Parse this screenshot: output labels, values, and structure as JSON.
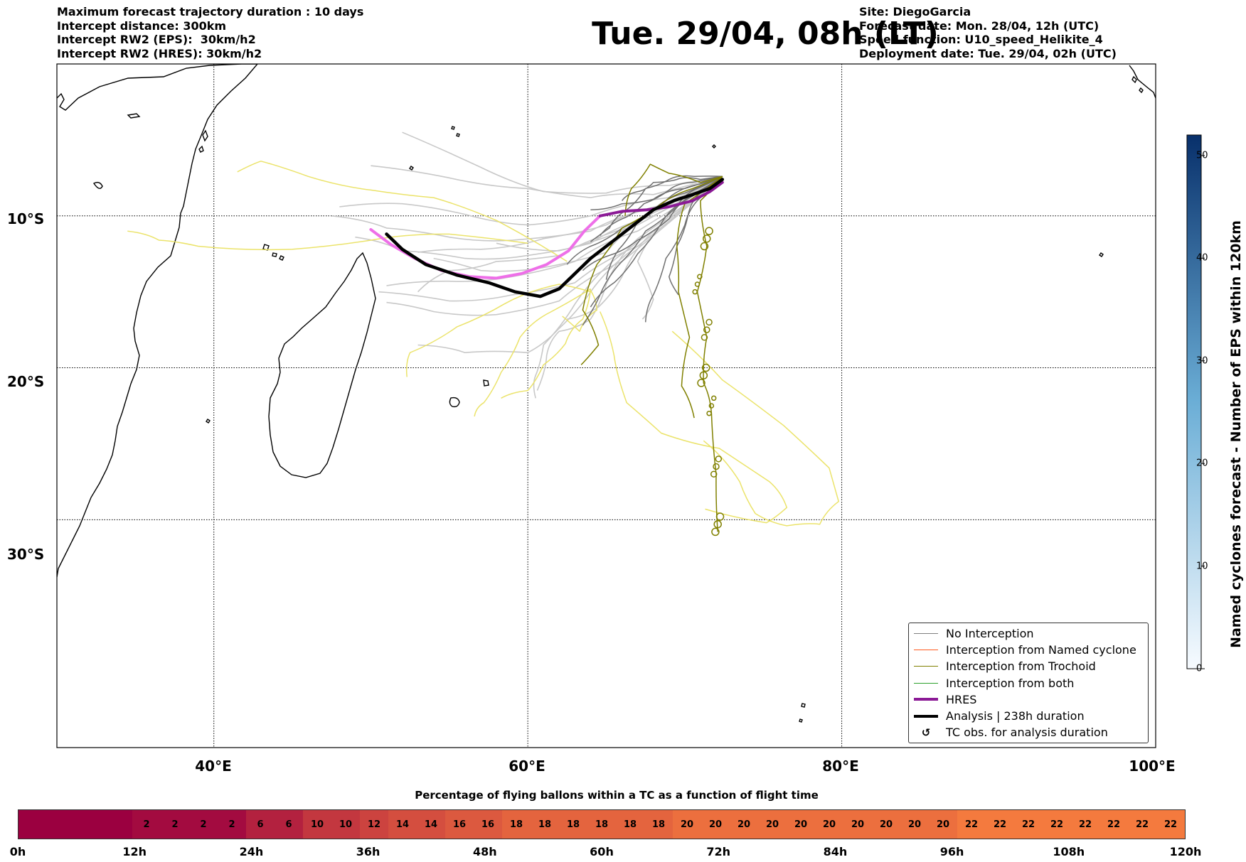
{
  "header_left": [
    "Maximum forecast trajectory duration : 10 days",
    "Intercept distance: 300km",
    "Intercept RW2 (EPS):  30km/h2",
    "Intercept RW2 (HRES): 30km/h2"
  ],
  "header_right": [
    "Site: DiegoGarcia",
    "Forecast date: Mon. 28/04, 12h (UTC)",
    "Speed function: U10_speed_Helikite_4",
    "Deployment date: Tue. 29/04, 02h (UTC)"
  ],
  "title": "Tue. 29/04, 08h (LT)",
  "map": {
    "lon_range": [
      30,
      100
    ],
    "lat_range": [
      -45,
      0
    ],
    "lon_labels": [
      "40°E",
      "60°E",
      "80°E",
      "100°E"
    ],
    "lat_labels": [
      "10°S",
      "20°S",
      "30°S"
    ],
    "lon_grid": [
      40,
      60,
      80
    ],
    "lat_grid": [
      -10,
      -20,
      -30
    ],
    "site": {
      "lon": 72.4,
      "lat": -7.3
    }
  },
  "legend": {
    "items": [
      {
        "label": "No Interception",
        "color": "#808080",
        "kind": "line",
        "width": 1.5
      },
      {
        "label": "Interception from Named cyclone",
        "color": "#ff5a1e",
        "kind": "line",
        "width": 1.5
      },
      {
        "label": "Interception from Trochoid",
        "color": "#808000",
        "kind": "line",
        "width": 1.5
      },
      {
        "label": "Interception from both",
        "color": "#2ca02c",
        "kind": "line",
        "width": 1.5
      },
      {
        "label": "HRES",
        "color": "#8b1a96",
        "kind": "line",
        "width": 4
      },
      {
        "label": "Analysis | 238h duration",
        "color": "#000000",
        "kind": "line",
        "width": 4
      },
      {
        "label": "TC obs. for analysis duration",
        "color": "#000000",
        "kind": "symbol",
        "symbol": "↺"
      }
    ]
  },
  "colorbar": {
    "title": "Named cyclones forecast - Number of EPS within 120km",
    "ticks": [
      "0",
      "10",
      "20",
      "30",
      "40",
      "50"
    ],
    "min": 0,
    "max": 52,
    "color_low": "#f7fbff",
    "color_high": "#08306b"
  },
  "percent_bar": {
    "title": "Percentage of flying ballons within a TC as a function of flight time",
    "values": [
      "",
      "",
      "",
      "",
      "2",
      "2",
      "2",
      "2",
      "6",
      "6",
      "10",
      "10",
      "12",
      "14",
      "14",
      "16",
      "16",
      "18",
      "18",
      "18",
      "18",
      "18",
      "18",
      "20",
      "20",
      "20",
      "20",
      "20",
      "20",
      "20",
      "20",
      "20",
      "20",
      "22",
      "22",
      "22",
      "22",
      "22",
      "22",
      "22",
      "22"
    ],
    "time_labels": [
      "0h",
      "12h",
      "24h",
      "36h",
      "48h",
      "60h",
      "72h",
      "84h",
      "96h",
      "108h",
      "120h"
    ],
    "color_low": "#9b0040",
    "color_high": "#f47a3e"
  },
  "tracks": {
    "analysis": [
      [
        51.0,
        -11.2
      ],
      [
        52.0,
        -12.2
      ],
      [
        53.5,
        -13.2
      ],
      [
        55.5,
        -13.9
      ],
      [
        57.5,
        -14.4
      ],
      [
        59.2,
        -15.0
      ],
      [
        60.8,
        -15.3
      ],
      [
        62.0,
        -14.8
      ],
      [
        63.0,
        -13.8
      ],
      [
        64.0,
        -12.8
      ],
      [
        65.5,
        -11.6
      ],
      [
        67.0,
        -10.4
      ],
      [
        68.0,
        -9.6
      ],
      [
        69.3,
        -9.0
      ],
      [
        70.5,
        -8.6
      ],
      [
        71.6,
        -8.2
      ],
      [
        72.4,
        -7.6
      ]
    ],
    "hres": [
      [
        50.0,
        -10.9
      ],
      [
        51.3,
        -11.9
      ],
      [
        52.8,
        -12.8
      ],
      [
        54.5,
        -13.6
      ],
      [
        56.3,
        -14.0
      ],
      [
        58.0,
        -14.1
      ],
      [
        59.6,
        -13.8
      ],
      [
        61.2,
        -13.2
      ],
      [
        62.6,
        -12.3
      ],
      [
        63.6,
        -11.0
      ],
      [
        64.6,
        -10.0
      ],
      [
        66.0,
        -9.7
      ],
      [
        67.6,
        -9.6
      ],
      [
        69.0,
        -9.4
      ],
      [
        70.5,
        -9.0
      ],
      [
        71.6,
        -8.4
      ],
      [
        72.4,
        -7.8
      ]
    ],
    "eps_light": [
      [
        [
          72.4,
          -7.4
        ],
        [
          69,
          -8
        ],
        [
          65,
          -8.5
        ],
        [
          61,
          -8.4
        ],
        [
          57,
          -6.8
        ],
        [
          52,
          -4.5
        ]
      ],
      [
        [
          72.4,
          -7.4
        ],
        [
          68,
          -8.6
        ],
        [
          64,
          -8.8
        ],
        [
          60,
          -8.2
        ],
        [
          55,
          -7.5
        ],
        [
          50,
          -6.7
        ]
      ],
      [
        [
          72.4,
          -7.4
        ],
        [
          69,
          -8.8
        ],
        [
          64,
          -10
        ],
        [
          60,
          -10.6
        ],
        [
          56,
          -9.9
        ],
        [
          52,
          -9.2
        ],
        [
          48,
          -9.4
        ]
      ],
      [
        [
          72.4,
          -7.4
        ],
        [
          68,
          -9.5
        ],
        [
          64,
          -11
        ],
        [
          59,
          -11.6
        ],
        [
          55,
          -11.4
        ],
        [
          51,
          -10.8
        ],
        [
          47.5,
          -10
        ]
      ],
      [
        [
          72.4,
          -7.4
        ],
        [
          68,
          -10
        ],
        [
          64,
          -11.8
        ],
        [
          60,
          -12.6
        ],
        [
          56,
          -12.8
        ],
        [
          52,
          -12.3
        ],
        [
          49,
          -11.4
        ]
      ],
      [
        [
          72.4,
          -7.4
        ],
        [
          67,
          -11
        ],
        [
          63,
          -13
        ],
        [
          59,
          -14
        ],
        [
          55,
          -14.3
        ],
        [
          51,
          -14.6
        ]
      ],
      [
        [
          72.4,
          -7.4
        ],
        [
          67,
          -12
        ],
        [
          63,
          -14.4
        ],
        [
          59,
          -15.2
        ],
        [
          55,
          -15.6
        ],
        [
          50.5,
          -15
        ]
      ],
      [
        [
          72.4,
          -7.4
        ],
        [
          66,
          -13
        ],
        [
          62,
          -15.6
        ],
        [
          58,
          -16.5
        ],
        [
          54,
          -16.3
        ],
        [
          51,
          -15.7
        ]
      ],
      [
        [
          72.4,
          -7.4
        ],
        [
          67,
          -12
        ],
        [
          64,
          -15
        ],
        [
          62,
          -17.4
        ],
        [
          60,
          -19
        ],
        [
          56,
          -19
        ],
        [
          53,
          -18.5
        ]
      ],
      [
        [
          72.4,
          -7.4
        ],
        [
          66,
          -12.5
        ],
        [
          63,
          -15.8
        ],
        [
          61,
          -18.5
        ],
        [
          60.5,
          -20.5
        ],
        [
          60.5,
          -22
        ]
      ],
      [
        [
          72.4,
          -7.4
        ],
        [
          67,
          -11.5
        ],
        [
          65,
          -14.5
        ],
        [
          64,
          -16.8
        ],
        [
          62,
          -17.6
        ],
        [
          61.2,
          -19.2
        ],
        [
          60.6,
          -21.5
        ]
      ],
      [
        [
          72.4,
          -7.4
        ],
        [
          68,
          -11
        ],
        [
          66,
          -14
        ],
        [
          64.5,
          -16
        ],
        [
          62.5,
          -16.8
        ]
      ],
      [
        [
          72.4,
          -7.4
        ],
        [
          69,
          -10
        ],
        [
          67,
          -13
        ],
        [
          68,
          -15.5
        ],
        [
          67.3,
          -16.8
        ]
      ],
      [
        [
          72.4,
          -7.4
        ],
        [
          70,
          -9
        ],
        [
          66,
          -11
        ],
        [
          62,
          -12.3
        ],
        [
          58,
          -11.8
        ]
      ],
      [
        [
          72.4,
          -7.4
        ],
        [
          69,
          -9.2
        ],
        [
          65,
          -10.6
        ],
        [
          61,
          -11.5
        ],
        [
          57,
          -12.2
        ],
        [
          53,
          -12.4
        ]
      ],
      [
        [
          72.4,
          -7.4
        ],
        [
          68,
          -9.8
        ],
        [
          65,
          -12.4
        ],
        [
          61,
          -13.4
        ],
        [
          57,
          -13.6
        ],
        [
          54,
          -12.8
        ]
      ],
      [
        [
          72.4,
          -7.4
        ],
        [
          67,
          -10.6
        ],
        [
          62,
          -12.6
        ],
        [
          58,
          -13.0
        ],
        [
          55,
          -13.6
        ],
        [
          53,
          -15
        ]
      ]
    ],
    "eps_dark": [
      [
        [
          72.4,
          -7.4
        ],
        [
          70,
          -8.2
        ],
        [
          68,
          -8.9
        ],
        [
          66,
          -9.2
        ],
        [
          64,
          -9.6
        ]
      ],
      [
        [
          72.4,
          -7.4
        ],
        [
          70,
          -8.5
        ],
        [
          68,
          -9.6
        ],
        [
          66,
          -10.8
        ],
        [
          64,
          -12.0
        ],
        [
          62.5,
          -13.2
        ]
      ],
      [
        [
          72.4,
          -7.4
        ],
        [
          70,
          -9
        ],
        [
          68.5,
          -10.5
        ],
        [
          67,
          -12.5
        ],
        [
          65.5,
          -14.4
        ],
        [
          64,
          -16
        ]
      ],
      [
        [
          72.4,
          -7.4
        ],
        [
          71,
          -8.8
        ],
        [
          70,
          -10.6
        ],
        [
          68.8,
          -12.8
        ],
        [
          68,
          -15.2
        ],
        [
          67.5,
          -17
        ]
      ],
      [
        [
          72.4,
          -7.4
        ],
        [
          70.8,
          -8.2
        ],
        [
          69.5,
          -9.4
        ],
        [
          67.5,
          -11
        ],
        [
          66,
          -13
        ],
        [
          64.6,
          -15.2
        ],
        [
          63.5,
          -17.2
        ]
      ],
      [
        [
          72.4,
          -7.4
        ],
        [
          70.5,
          -7.8
        ],
        [
          69,
          -8.3
        ],
        [
          67.4,
          -9.2
        ],
        [
          66,
          -10.2
        ],
        [
          64.6,
          -11.3
        ]
      ],
      [
        [
          72.4,
          -7.4
        ],
        [
          71,
          -7.6
        ],
        [
          69.5,
          -7.6
        ],
        [
          68,
          -7.8
        ],
        [
          67,
          -8.4
        ],
        [
          66,
          -9
        ]
      ],
      [
        [
          72.4,
          -7.4
        ],
        [
          71,
          -8.5
        ],
        [
          70.2,
          -10
        ],
        [
          69.5,
          -12
        ],
        [
          69,
          -14
        ],
        [
          69.6,
          -15.2
        ]
      ],
      [
        [
          72.4,
          -7.4
        ],
        [
          70.5,
          -8.6
        ],
        [
          69,
          -10.2
        ],
        [
          67,
          -11.6
        ],
        [
          65.2,
          -12.6
        ],
        [
          63.5,
          -13.6
        ]
      ],
      [
        [
          72.4,
          -7.4
        ],
        [
          71,
          -7.9
        ],
        [
          69,
          -8.8
        ],
        [
          67,
          -10.4
        ],
        [
          65.8,
          -12.2
        ],
        [
          65,
          -14.2
        ]
      ],
      [
        [
          72.4,
          -7.4
        ],
        [
          70.6,
          -7.4
        ],
        [
          69,
          -7.6
        ],
        [
          67.5,
          -8.2
        ],
        [
          66.3,
          -9.6
        ],
        [
          65.2,
          -10.8
        ],
        [
          64,
          -11.7
        ]
      ]
    ],
    "trochoid": [
      [
        [
          72.4,
          -7.4
        ],
        [
          71,
          -9
        ],
        [
          71.4,
          -12
        ],
        [
          70.8,
          -15
        ],
        [
          71.4,
          -18
        ],
        [
          71.2,
          -21
        ],
        [
          71.7,
          -23
        ],
        [
          72,
          -27
        ],
        [
          72.1,
          -30.8
        ]
      ],
      [
        [
          72.4,
          -7.4
        ],
        [
          70,
          -9.2
        ],
        [
          69.5,
          -12
        ],
        [
          69.6,
          -15
        ],
        [
          70.3,
          -18
        ],
        [
          69.8,
          -21.2
        ],
        [
          70.6,
          -23.3
        ]
      ],
      [
        [
          72.4,
          -7.4
        ],
        [
          70.5,
          -8.2
        ],
        [
          68.4,
          -9.3
        ],
        [
          66,
          -10.8
        ],
        [
          64.4,
          -13.2
        ],
        [
          63.5,
          -16.2
        ],
        [
          64.5,
          -18.5
        ],
        [
          63.4,
          -19.8
        ]
      ],
      [
        [
          72.4,
          -7.4
        ],
        [
          71,
          -7.8
        ],
        [
          69,
          -7.2
        ],
        [
          67.8,
          -6.6
        ],
        [
          66.6,
          -8.2
        ],
        [
          66.2,
          -10
        ]
      ]
    ],
    "yellow": [
      [
        [
          62.5,
          -13
        ],
        [
          58,
          -10.3
        ],
        [
          54,
          -8.8
        ],
        [
          50,
          -8.3
        ],
        [
          46,
          -7.4
        ],
        [
          43,
          -6.4
        ],
        [
          41.5,
          -7.1
        ]
      ],
      [
        [
          60,
          -11.8
        ],
        [
          55,
          -11.2
        ],
        [
          50,
          -11.6
        ],
        [
          45,
          -12.2
        ],
        [
          39,
          -12
        ],
        [
          36.5,
          -11.6
        ],
        [
          34.5,
          -11
        ]
      ],
      [
        [
          64,
          -15
        ],
        [
          62,
          -14.5
        ],
        [
          58.5,
          -15.8
        ],
        [
          55.5,
          -17.3
        ],
        [
          52.5,
          -19
        ],
        [
          52.3,
          -20.6
        ]
      ],
      [
        [
          64,
          -14.8
        ],
        [
          61.5,
          -16.3
        ],
        [
          59.5,
          -18
        ],
        [
          58.3,
          -20.3
        ],
        [
          57.2,
          -22.3
        ],
        [
          56.6,
          -23.2
        ]
      ],
      [
        [
          64,
          -14.8
        ],
        [
          63.5,
          -16.8
        ],
        [
          62.4,
          -18.4
        ],
        [
          61,
          -19.8
        ],
        [
          60,
          -21.5
        ],
        [
          58.3,
          -22
        ]
      ],
      [
        [
          64.6,
          -16.3
        ],
        [
          65.5,
          -19.2
        ],
        [
          66.3,
          -22.3
        ],
        [
          68.5,
          -24.3
        ],
        [
          72.2,
          -25.3
        ],
        [
          75.4,
          -27.5
        ],
        [
          76.5,
          -29.2
        ],
        [
          75.2,
          -30.2
        ],
        [
          71.3,
          -29.3
        ]
      ],
      [
        [
          69.2,
          -17.6
        ],
        [
          72.4,
          -20.8
        ],
        [
          76.3,
          -23.8
        ],
        [
          79.2,
          -26.6
        ],
        [
          79.8,
          -28.8
        ],
        [
          78.6,
          -30.3
        ],
        [
          76.5,
          -30.4
        ],
        [
          74.5,
          -29.6
        ],
        [
          73.5,
          -27.5
        ],
        [
          71.2,
          -24.8
        ]
      ],
      [
        [
          64,
          -14.9
        ],
        [
          64.4,
          -16.2
        ],
        [
          63.3,
          -17.6
        ],
        [
          62.2,
          -16.6
        ]
      ]
    ]
  }
}
